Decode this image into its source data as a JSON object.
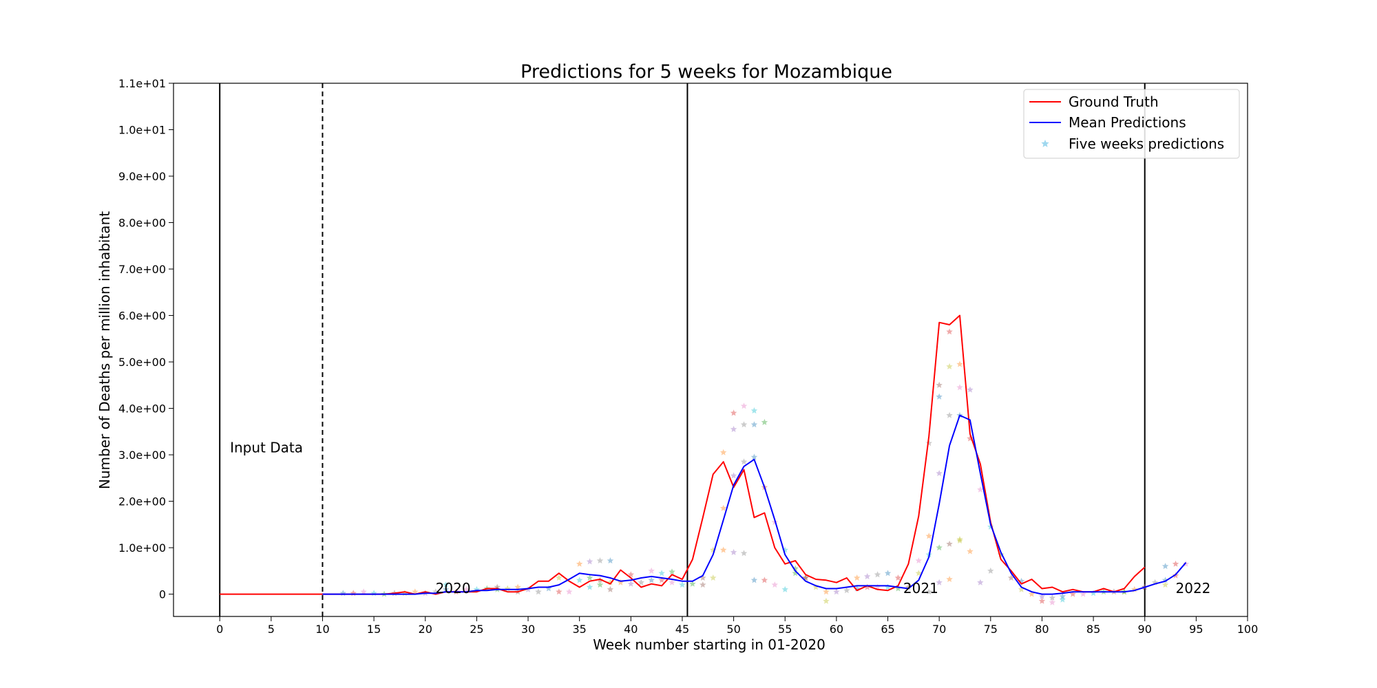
{
  "chart_data": {
    "type": "line",
    "title": "Predictions for 5 weeks for Mozambique",
    "xlabel": "Week number starting in 01-2020",
    "ylabel": "Number of Deaths per million inhabitant",
    "xlim": [
      -4.5,
      100
    ],
    "ylim": [
      -0.48,
      11.0
    ],
    "x_ticks": [
      0,
      5,
      10,
      15,
      20,
      25,
      30,
      35,
      40,
      45,
      50,
      55,
      60,
      65,
      70,
      75,
      80,
      85,
      90,
      95,
      100
    ],
    "y_ticks": [
      0,
      1,
      2,
      3,
      4,
      5,
      6,
      7,
      8,
      9,
      10,
      11
    ],
    "y_tick_labels": [
      "0",
      "1.0e+00",
      "2.0e+00",
      "3.0e+00",
      "4.0e+00",
      "5.0e+00",
      "6.0e+00",
      "7.0e+00",
      "8.0e+00",
      "9.0e+00",
      "1.0e+01",
      "1.1e+01"
    ],
    "grid": false,
    "legend_position": "top-right",
    "legend": [
      "Ground Truth",
      "Mean Predictions",
      "Five weeks predictions"
    ],
    "vertical_lines": [
      {
        "x": 0,
        "style": "solid"
      },
      {
        "x": 10,
        "style": "dashed"
      },
      {
        "x": 45.5,
        "style": "solid"
      },
      {
        "x": 90,
        "style": "solid"
      }
    ],
    "annotations": [
      {
        "text": "Input Data",
        "x": 1,
        "y": 3.05
      },
      {
        "text": "2020",
        "x": 21,
        "y": 0.02
      },
      {
        "text": "2021",
        "x": 66.5,
        "y": 0.02
      },
      {
        "text": "2022",
        "x": 93,
        "y": 0.02
      }
    ],
    "series": [
      {
        "name": "Ground Truth",
        "color": "#ff0000",
        "x": [
          0,
          1,
          2,
          3,
          4,
          5,
          6,
          7,
          8,
          9,
          10,
          11,
          12,
          13,
          14,
          15,
          16,
          17,
          18,
          19,
          20,
          21,
          22,
          23,
          24,
          25,
          26,
          27,
          28,
          29,
          30,
          31,
          32,
          33,
          34,
          35,
          36,
          37,
          38,
          39,
          40,
          41,
          42,
          43,
          44,
          45,
          46,
          47,
          48,
          49,
          50,
          51,
          52,
          53,
          54,
          55,
          56,
          57,
          58,
          59,
          60,
          61,
          62,
          63,
          64,
          65,
          66,
          67,
          68,
          69,
          70,
          71,
          72,
          73,
          74,
          75,
          76,
          77,
          78,
          79,
          80,
          81,
          82,
          83,
          84,
          85,
          86,
          87,
          88,
          89,
          90
        ],
        "values": [
          0,
          0,
          0,
          0,
          0,
          0,
          0,
          0,
          0,
          0,
          0,
          0,
          0,
          0,
          0,
          0,
          0,
          0.02,
          0.05,
          0,
          0.05,
          0,
          0.05,
          0.05,
          0.05,
          0.05,
          0.12,
          0.12,
          0.05,
          0.05,
          0.12,
          0.28,
          0.28,
          0.45,
          0.28,
          0.15,
          0.28,
          0.32,
          0.22,
          0.52,
          0.35,
          0.15,
          0.22,
          0.18,
          0.42,
          0.32,
          0.75,
          1.65,
          2.58,
          2.85,
          2.3,
          2.68,
          1.65,
          1.75,
          1.0,
          0.65,
          0.72,
          0.42,
          0.32,
          0.3,
          0.25,
          0.35,
          0.08,
          0.18,
          0.1,
          0.08,
          0.18,
          0.65,
          1.68,
          3.4,
          5.85,
          5.8,
          6.0,
          3.45,
          2.8,
          1.55,
          0.75,
          0.5,
          0.22,
          0.32,
          0.12,
          0.15,
          0.05,
          0.1,
          0.05,
          0.05,
          0.12,
          0.05,
          0.12,
          0.38,
          0.58
        ]
      },
      {
        "name": "Mean Predictions",
        "color": "#0000ff",
        "x": [
          10,
          11,
          12,
          13,
          14,
          15,
          16,
          17,
          18,
          19,
          20,
          21,
          22,
          23,
          24,
          25,
          26,
          27,
          28,
          29,
          30,
          31,
          32,
          33,
          34,
          35,
          36,
          37,
          38,
          39,
          40,
          41,
          42,
          43,
          44,
          45,
          46,
          47,
          48,
          49,
          50,
          51,
          52,
          53,
          54,
          55,
          56,
          57,
          58,
          59,
          60,
          61,
          62,
          63,
          64,
          65,
          66,
          67,
          68,
          69,
          70,
          71,
          72,
          73,
          74,
          75,
          76,
          77,
          78,
          79,
          80,
          81,
          82,
          83,
          84,
          85,
          86,
          87,
          88,
          89,
          90,
          91,
          92,
          93,
          94
        ],
        "values": [
          0,
          0,
          0,
          0,
          0,
          0,
          0,
          0,
          0,
          0,
          0.02,
          0.02,
          0.05,
          0.05,
          0.05,
          0.08,
          0.08,
          0.1,
          0.1,
          0.1,
          0.12,
          0.15,
          0.15,
          0.2,
          0.32,
          0.45,
          0.42,
          0.4,
          0.35,
          0.28,
          0.3,
          0.35,
          0.38,
          0.35,
          0.32,
          0.28,
          0.28,
          0.4,
          0.85,
          1.6,
          2.35,
          2.75,
          2.9,
          2.3,
          1.6,
          0.85,
          0.5,
          0.28,
          0.18,
          0.12,
          0.12,
          0.15,
          0.18,
          0.18,
          0.18,
          0.18,
          0.15,
          0.12,
          0.3,
          0.8,
          1.95,
          3.2,
          3.85,
          3.75,
          2.6,
          1.5,
          0.9,
          0.45,
          0.15,
          0.05,
          0,
          0,
          0.02,
          0.05,
          0.05,
          0.05,
          0.05,
          0.05,
          0.05,
          0.08,
          0.15,
          0.22,
          0.28,
          0.42,
          0.68
        ]
      }
    ],
    "prediction_points": {
      "name": "Five weeks predictions",
      "marker": "star",
      "legend_color": "#87ceeb",
      "palette": [
        "#1f77b4",
        "#ff7f0e",
        "#2ca02c",
        "#d62728",
        "#9467bd",
        "#8c564b",
        "#e377c2",
        "#7f7f7f",
        "#bcbd22",
        "#17becf"
      ],
      "x": [
        12,
        13,
        14,
        15,
        16,
        17,
        18,
        19,
        20,
        21,
        22,
        23,
        24,
        25,
        26,
        27,
        28,
        29,
        30,
        31,
        32,
        33,
        34,
        35,
        36,
        37,
        38,
        39,
        40,
        41,
        42,
        43,
        44,
        45,
        46,
        47,
        48,
        49,
        50,
        51,
        52,
        53,
        54,
        55,
        56,
        57,
        58,
        59,
        60,
        61,
        62,
        63,
        64,
        65,
        66,
        67,
        68,
        69,
        70,
        71,
        72,
        73,
        74,
        75,
        76,
        77,
        78,
        79,
        80,
        81,
        82,
        83,
        84,
        85,
        86,
        87,
        88,
        89,
        90,
        91,
        92,
        93,
        94,
        22,
        27,
        29,
        33,
        35,
        36,
        37,
        38,
        40,
        42,
        43,
        44,
        47,
        48,
        49,
        50,
        51,
        52,
        53,
        54,
        55,
        56,
        57,
        59,
        62,
        63,
        64,
        65,
        66,
        68,
        69,
        70,
        71,
        72,
        73,
        74,
        75,
        78,
        80,
        81,
        82,
        88,
        90,
        92,
        49,
        50,
        51,
        52,
        50,
        51,
        52,
        53,
        70,
        71,
        72,
        73,
        69,
        70,
        71,
        72,
        36,
        37,
        38,
        72,
        71,
        70,
        69,
        92,
        93
      ],
      "values": [
        0.02,
        0.02,
        0.05,
        0.02,
        0,
        0.02,
        0.02,
        0.05,
        0.02,
        0.05,
        0.1,
        0.05,
        0.1,
        0.1,
        0.12,
        0.15,
        0.12,
        0.15,
        0.1,
        0.05,
        0.12,
        0.05,
        0.05,
        0.3,
        0.35,
        0.3,
        0.25,
        0.25,
        0.22,
        0.25,
        0.3,
        0.3,
        0.25,
        0.2,
        0.22,
        0.35,
        0.95,
        1.85,
        2.55,
        2.85,
        2.95,
        2.3,
        1.55,
        0.95,
        0.55,
        0.35,
        0.15,
        0.05,
        0.05,
        0.08,
        0.12,
        0.15,
        0.15,
        0.15,
        0.12,
        0.15,
        0.45,
        1.25,
        2.6,
        3.85,
        3.85,
        3.35,
        2.25,
        1.45,
        0.85,
        0.35,
        0.1,
        0,
        -0.05,
        -0.08,
        -0.05,
        0,
        0,
        0.02,
        0.05,
        0.05,
        0.05,
        0.1,
        0.15,
        0.25,
        0.3,
        0.4,
        0.65,
        0.2,
        0.1,
        0.05,
        0.35,
        0.65,
        0.7,
        0.72,
        0.72,
        0.42,
        0.5,
        0.45,
        0.48,
        0.2,
        0.35,
        0.95,
        0.9,
        0.88,
        0.3,
        0.3,
        0.2,
        0.1,
        0.45,
        0.35,
        -0.15,
        0.35,
        0.38,
        0.42,
        0.45,
        0.35,
        0.72,
        0.85,
        1.0,
        1.08,
        1.15,
        0.92,
        0.25,
        0.5,
        0.28,
        -0.15,
        -0.18,
        -0.12,
        0.05,
        0.15,
        0.2,
        3.05,
        3.55,
        3.65,
        3.65,
        3.9,
        4.05,
        3.95,
        3.7,
        4.5,
        4.9,
        4.95,
        4.4,
        3.25,
        4.25,
        5.65,
        4.45,
        0.15,
        0.2,
        0.1,
        1.18,
        0.32,
        0.25,
        0.05,
        0.6,
        0.65
      ]
    }
  }
}
